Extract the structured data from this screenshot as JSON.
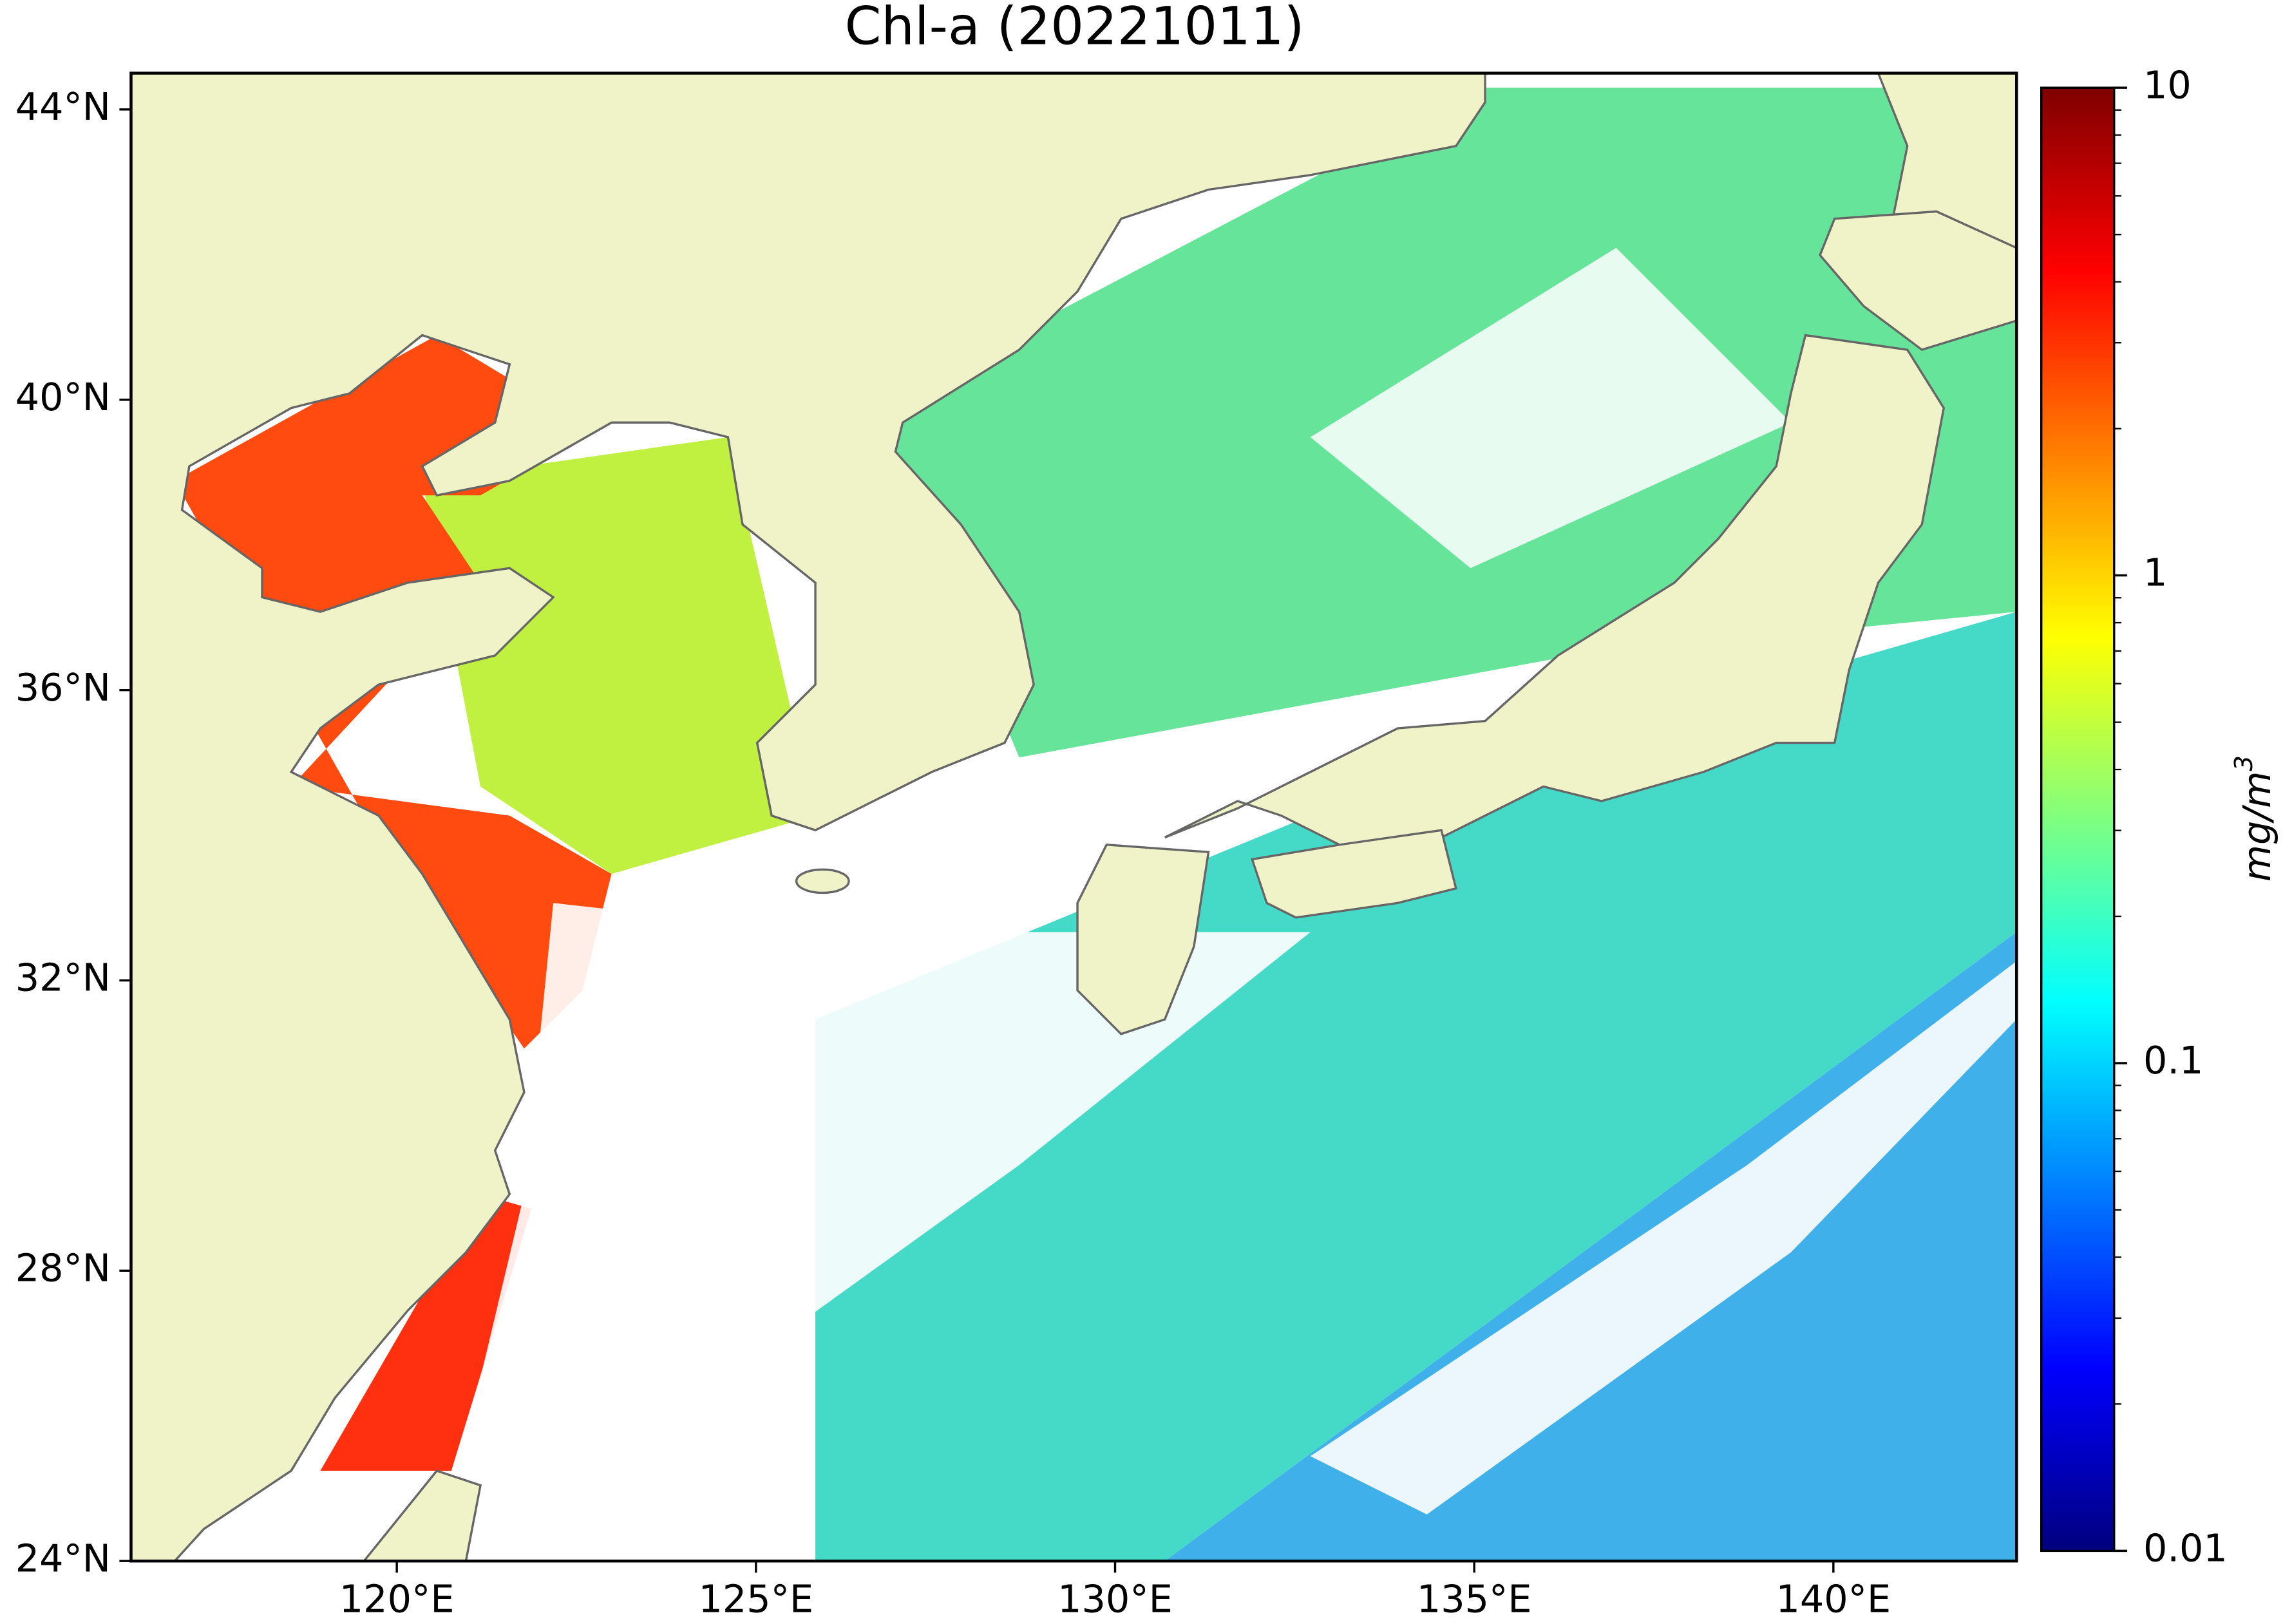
{
  "map": {
    "title": "Chl-a (20221011)",
    "lon_lim": [
      116.3,
      142.55
    ],
    "lat_lim": [
      24,
      44.5
    ],
    "lon_ticks": [
      {
        "value": 120,
        "label": "120°E"
      },
      {
        "value": 125,
        "label": "125°E"
      },
      {
        "value": 130,
        "label": "130°E"
      },
      {
        "value": 135,
        "label": "135°E"
      },
      {
        "value": 140,
        "label": "140°E"
      }
    ],
    "lat_ticks": [
      {
        "value": 24,
        "label": "24°N"
      },
      {
        "value": 28,
        "label": "28°N"
      },
      {
        "value": 32,
        "label": "32°N"
      },
      {
        "value": 36,
        "label": "36°N"
      },
      {
        "value": 40,
        "label": "40°N"
      },
      {
        "value": 44,
        "label": "44°N"
      }
    ],
    "colorbar": {
      "scale": "log",
      "lim": [
        0.01,
        10
      ],
      "ticks": [
        0.01,
        0.1,
        1,
        10
      ],
      "label": "mg/m",
      "label_superscript": "3"
    }
  }
}
